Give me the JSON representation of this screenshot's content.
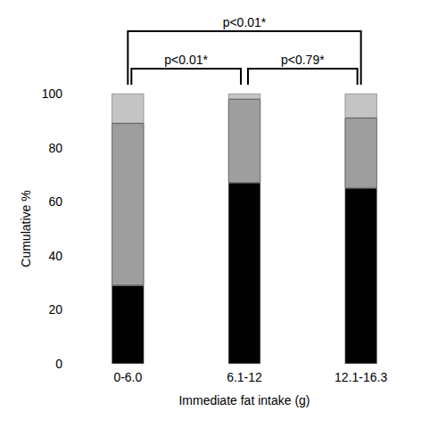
{
  "chart_data": {
    "type": "bar",
    "stacked": true,
    "x_label": "Immediate fat intake (g)",
    "y_label": "Cumulative %",
    "categories": [
      "0-6.0",
      "6.1-12",
      "12.1-16.3"
    ],
    "series": [
      {
        "color": "#000000",
        "values": [
          29,
          67,
          65
        ]
      },
      {
        "color": "#9e9e9e",
        "values": [
          60,
          31,
          26
        ]
      },
      {
        "color": "#c4c4c4",
        "values": [
          11,
          2,
          9
        ]
      }
    ],
    "ylim": [
      0,
      100
    ],
    "yticks": [
      0,
      20,
      40,
      60,
      80,
      100
    ],
    "grid": false,
    "annotations": [
      {
        "text": "p<0.01*",
        "between": [
          "0-6.0",
          "12.1-16.3"
        ]
      },
      {
        "text": "p<0.01*",
        "between": [
          "0-6.0",
          "6.1-12"
        ]
      },
      {
        "text": "p<0.79*",
        "between": [
          "6.1-12",
          "12.1-16.3"
        ]
      }
    ]
  }
}
